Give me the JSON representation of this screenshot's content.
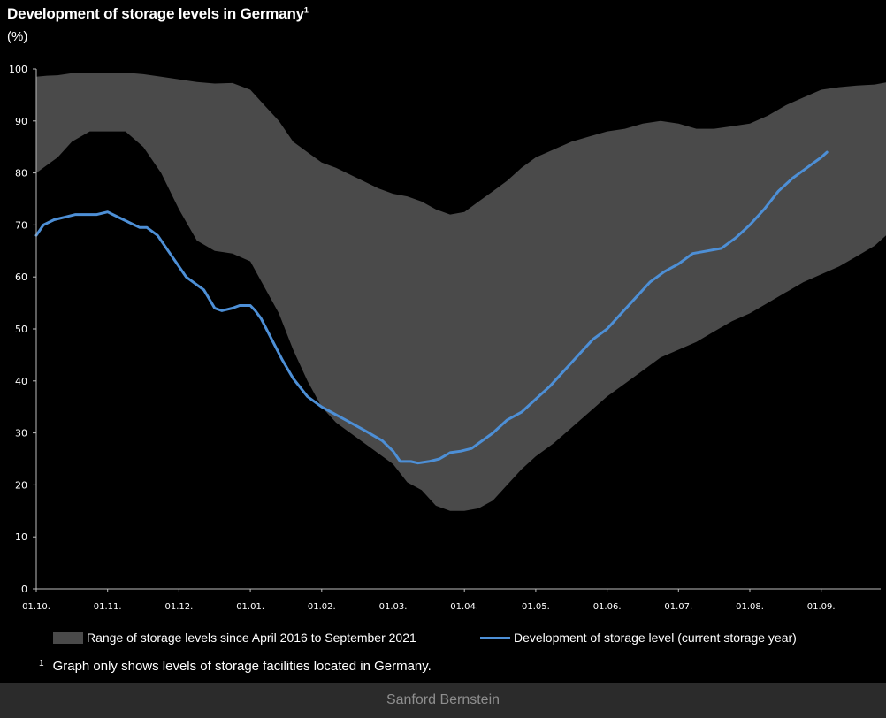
{
  "chart_data": {
    "type": "area",
    "title": "Development of storage levels in Germany",
    "title_footnote_mark": "1",
    "ylabel": "(%)",
    "xlabel": "",
    "ylim": [
      0,
      100
    ],
    "yticks": [
      0,
      10,
      20,
      30,
      40,
      50,
      60,
      70,
      80,
      90,
      100
    ],
    "x_categories": [
      "01.10.",
      "01.11.",
      "01.12.",
      "01.01.",
      "01.02.",
      "01.03.",
      "01.04.",
      "01.05.",
      "01.06.",
      "01.07.",
      "01.08.",
      "01.09."
    ],
    "grid": false,
    "legend_position": "bottom",
    "series": [
      {
        "name": "Range of storage levels since April 2016 to September 2021",
        "kind": "range",
        "color": "#4a4a4a",
        "x": [
          0,
          0.15,
          0.3,
          0.5,
          0.75,
          1.0,
          1.25,
          1.5,
          1.75,
          2.0,
          2.25,
          2.5,
          2.75,
          3.0,
          3.2,
          3.4,
          3.6,
          3.8,
          4.0,
          4.2,
          4.5,
          4.8,
          5.0,
          5.2,
          5.4,
          5.6,
          5.8,
          6.0,
          6.2,
          6.4,
          6.6,
          6.8,
          7.0,
          7.25,
          7.5,
          7.75,
          8.0,
          8.25,
          8.5,
          8.75,
          9.0,
          9.25,
          9.5,
          9.75,
          10.0,
          10.25,
          10.5,
          10.75,
          11.0,
          11.25,
          11.5,
          11.75,
          11.95
        ],
        "low": [
          80,
          81.5,
          83,
          86,
          88,
          88,
          88,
          85,
          80,
          73,
          67,
          65,
          64.5,
          63,
          58,
          53,
          46,
          40,
          35,
          32,
          29,
          26,
          24,
          20.5,
          19,
          16,
          15,
          15,
          15.5,
          17,
          20,
          23,
          25.5,
          28,
          31,
          34,
          37,
          39.5,
          42,
          44.5,
          46,
          47.5,
          49.5,
          51.5,
          53,
          55,
          57,
          59,
          60.5,
          62,
          64,
          66,
          68.5
        ],
        "high": [
          98.5,
          98.7,
          98.8,
          99.2,
          99.3,
          99.3,
          99.3,
          99,
          98.5,
          98,
          97.5,
          97.2,
          97.3,
          96,
          93,
          90,
          86,
          84,
          82,
          81,
          79,
          77,
          76,
          75.5,
          74.5,
          73,
          72,
          72.5,
          74.5,
          76.5,
          78.5,
          81,
          83,
          84.5,
          86,
          87,
          88,
          88.5,
          89.5,
          90,
          89.5,
          88.5,
          88.5,
          89,
          89.5,
          91,
          93,
          94.5,
          96,
          96.5,
          96.8,
          97,
          97.5
        ]
      },
      {
        "name": "Development of storage level (current storage year)",
        "kind": "line",
        "color": "#4d8fd6",
        "x": [
          0,
          0.1,
          0.25,
          0.4,
          0.55,
          0.7,
          0.85,
          1.0,
          1.15,
          1.3,
          1.45,
          1.55,
          1.7,
          1.85,
          2.0,
          2.1,
          2.2,
          2.35,
          2.5,
          2.6,
          2.75,
          2.85,
          3.0,
          3.07,
          3.15,
          3.3,
          3.45,
          3.6,
          3.8,
          4.0,
          4.2,
          4.4,
          4.6,
          4.85,
          5.0,
          5.1,
          5.25,
          5.35,
          5.5,
          5.65,
          5.8,
          5.95,
          6.1,
          6.25,
          6.4,
          6.6,
          6.8,
          7.0,
          7.2,
          7.4,
          7.6,
          7.8,
          8.0,
          8.2,
          8.4,
          8.6,
          8.8,
          9.0,
          9.2,
          9.4,
          9.6,
          9.8,
          10.0,
          10.2,
          10.4,
          10.6,
          10.75,
          10.9,
          11.0,
          11.08
        ],
        "values": [
          68,
          70,
          71,
          71.5,
          72,
          72,
          72,
          72.5,
          71.5,
          70.5,
          69.5,
          69.5,
          68,
          65,
          62,
          60,
          59,
          57.5,
          54,
          53.5,
          54,
          54.5,
          54.5,
          53.5,
          52,
          48,
          44,
          40.5,
          37,
          35,
          33.5,
          32,
          30.5,
          28.5,
          26.5,
          24.5,
          24.5,
          24.2,
          24.5,
          25,
          26.2,
          26.5,
          27,
          28.5,
          30,
          32.5,
          34,
          36.5,
          39,
          42,
          45,
          48,
          50,
          53,
          56,
          59,
          61,
          62.5,
          64.5,
          65,
          65.5,
          67.5,
          70,
          73,
          76.5,
          79,
          80.5,
          82,
          83,
          84
        ]
      }
    ]
  },
  "footnote": {
    "mark": "1",
    "text": "Graph only shows levels of storage facilities located in Germany."
  },
  "source": "Sanford Bernstein"
}
